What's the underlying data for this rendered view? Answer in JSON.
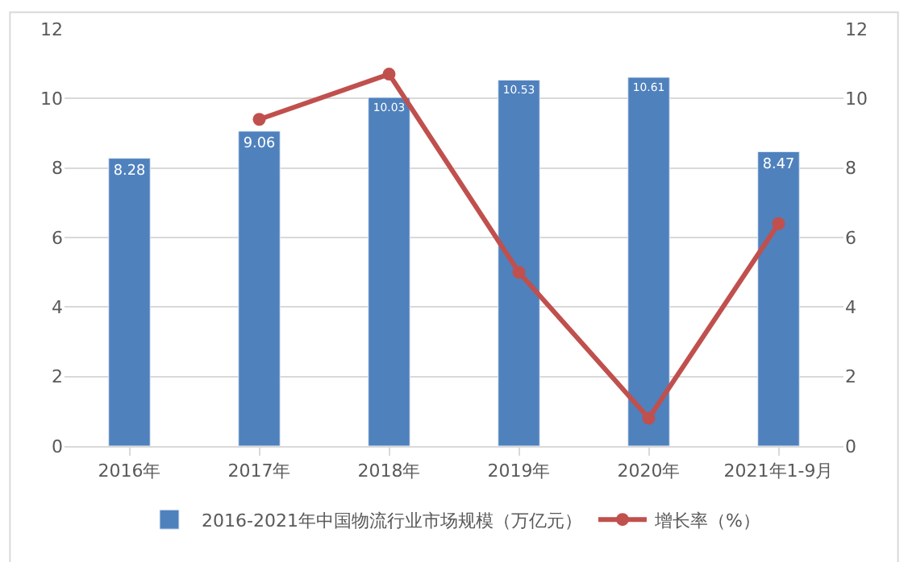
{
  "chart_data": {
    "type": "bar",
    "categories": [
      "2016年",
      "2017年",
      "2018年",
      "2019年",
      "2020年",
      "2021年1-9月"
    ],
    "series": [
      {
        "name": "2016-2021年中国物流行业市场规模（万亿元）",
        "color": "#4f81bd",
        "values": [
          8.28,
          9.06,
          10.03,
          10.53,
          10.61,
          8.47
        ],
        "value_labels": [
          "8.28",
          "9.06",
          "10.03",
          "10.53",
          "10.61",
          "8.47"
        ]
      },
      {
        "name": "增长率（%）",
        "type": "line",
        "axis": "y2",
        "color": "#c0504d",
        "marker": "circle",
        "values": [
          null,
          9.4,
          10.7,
          5.0,
          0.8,
          6.4
        ]
      }
    ],
    "ylim": [
      0,
      12
    ],
    "yticks": [
      0,
      2,
      4,
      6,
      8,
      10,
      12
    ],
    "y2lim": [
      0,
      12
    ],
    "y2ticks": [
      0,
      2,
      4,
      6,
      8,
      10,
      12
    ],
    "grid": "y",
    "legend": "bottom"
  }
}
